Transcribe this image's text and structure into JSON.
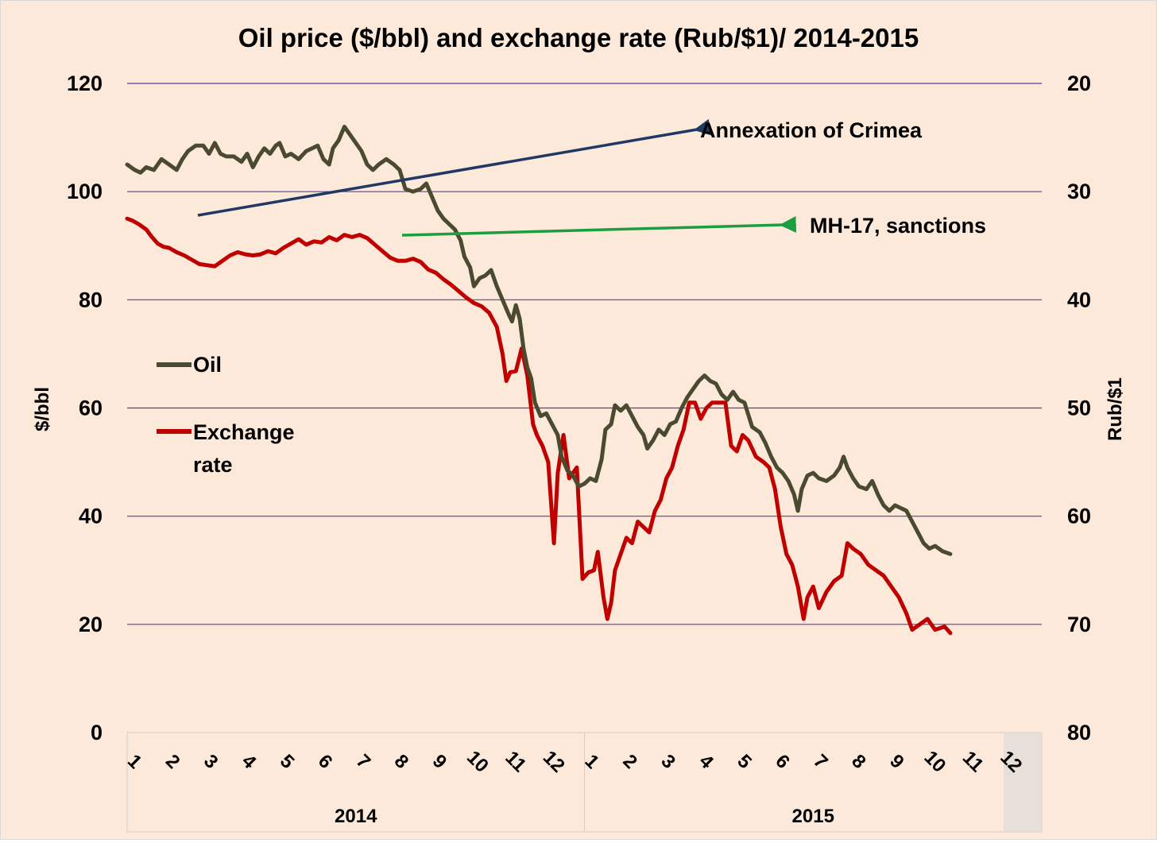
{
  "chart_data": {
    "type": "line",
    "title": "Oil price ($/bbl) and exchange rate (Rub/$1)/ 2014-2015",
    "ylabel_left": "$/bbl",
    "ylabel_right": "Rub/$1",
    "ylim_left": [
      0,
      120
    ],
    "yticks_left": [
      "0",
      "20",
      "40",
      "60",
      "80",
      "100",
      "120"
    ],
    "ylim_right": [
      80,
      20
    ],
    "yticks_right": [
      "80",
      "70",
      "60",
      "50",
      "40",
      "30",
      "20"
    ],
    "right_axis_inverted": true,
    "grid": true,
    "legend_position": "left-middle",
    "x_tick_labels": [
      "1",
      "2",
      "3",
      "4",
      "5",
      "6",
      "7",
      "8",
      "9",
      "10",
      "11",
      "12",
      "1",
      "2",
      "3",
      "4",
      "5",
      "6",
      "7",
      "8",
      "9",
      "10",
      "11",
      "12"
    ],
    "years": [
      "2014",
      "2015"
    ],
    "x_unit": "month index (1 = Jan 2014, 25 = end of Dec 2015)",
    "series": [
      {
        "name": "Oil",
        "axis": "left",
        "color": "#4a4a30",
        "points": [
          [
            1.0,
            105
          ],
          [
            1.2,
            104
          ],
          [
            1.35,
            103.5
          ],
          [
            1.5,
            104.5
          ],
          [
            1.7,
            104
          ],
          [
            1.9,
            106
          ],
          [
            2.1,
            105
          ],
          [
            2.3,
            104
          ],
          [
            2.45,
            106
          ],
          [
            2.6,
            107.5
          ],
          [
            2.8,
            108.5
          ],
          [
            3.0,
            108.5
          ],
          [
            3.15,
            107
          ],
          [
            3.3,
            109
          ],
          [
            3.45,
            107
          ],
          [
            3.6,
            106.5
          ],
          [
            3.8,
            106.5
          ],
          [
            4.0,
            105.5
          ],
          [
            4.15,
            107
          ],
          [
            4.3,
            104.5
          ],
          [
            4.45,
            106.5
          ],
          [
            4.6,
            108
          ],
          [
            4.75,
            107
          ],
          [
            4.9,
            108.5
          ],
          [
            5.0,
            109
          ],
          [
            5.15,
            106.5
          ],
          [
            5.3,
            107
          ],
          [
            5.5,
            106
          ],
          [
            5.7,
            107.5
          ],
          [
            5.85,
            108
          ],
          [
            6.0,
            108.5
          ],
          [
            6.15,
            106
          ],
          [
            6.3,
            105
          ],
          [
            6.4,
            108
          ],
          [
            6.55,
            109.5
          ],
          [
            6.7,
            112
          ],
          [
            6.85,
            110.5
          ],
          [
            7.0,
            109
          ],
          [
            7.15,
            107.5
          ],
          [
            7.3,
            105
          ],
          [
            7.45,
            104
          ],
          [
            7.6,
            105
          ],
          [
            7.8,
            106
          ],
          [
            8.0,
            105
          ],
          [
            8.15,
            104
          ],
          [
            8.3,
            100.5
          ],
          [
            8.5,
            100
          ],
          [
            8.7,
            100.5
          ],
          [
            8.85,
            101.5
          ],
          [
            9.0,
            99
          ],
          [
            9.15,
            96.5
          ],
          [
            9.3,
            95
          ],
          [
            9.45,
            94
          ],
          [
            9.6,
            93
          ],
          [
            9.75,
            91
          ],
          [
            9.85,
            88
          ],
          [
            10.0,
            86
          ],
          [
            10.1,
            82.5
          ],
          [
            10.25,
            84
          ],
          [
            10.4,
            84.5
          ],
          [
            10.55,
            85.5
          ],
          [
            10.7,
            82.5
          ],
          [
            10.85,
            80
          ],
          [
            11.0,
            77.5
          ],
          [
            11.1,
            76
          ],
          [
            11.2,
            79
          ],
          [
            11.3,
            76.5
          ],
          [
            11.4,
            71
          ],
          [
            11.5,
            67.5
          ],
          [
            11.6,
            65.5
          ],
          [
            11.7,
            61
          ],
          [
            11.85,
            58.5
          ],
          [
            12.0,
            59
          ],
          [
            12.15,
            57
          ],
          [
            12.3,
            55
          ],
          [
            12.4,
            51
          ],
          [
            12.55,
            48.5
          ],
          [
            12.7,
            47.5
          ],
          [
            12.85,
            45.5
          ],
          [
            13.0,
            46
          ],
          [
            13.15,
            47
          ],
          [
            13.3,
            46.5
          ],
          [
            13.45,
            50.5
          ],
          [
            13.55,
            56
          ],
          [
            13.7,
            57
          ],
          [
            13.8,
            60.5
          ],
          [
            13.95,
            59.5
          ],
          [
            14.1,
            60.5
          ],
          [
            14.25,
            58.5
          ],
          [
            14.4,
            56.5
          ],
          [
            14.55,
            55
          ],
          [
            14.65,
            52.5
          ],
          [
            14.8,
            54
          ],
          [
            14.95,
            56
          ],
          [
            15.1,
            55
          ],
          [
            15.25,
            57
          ],
          [
            15.4,
            57.5
          ],
          [
            15.55,
            60
          ],
          [
            15.7,
            62
          ],
          [
            15.85,
            63.5
          ],
          [
            16.0,
            65
          ],
          [
            16.15,
            66
          ],
          [
            16.3,
            65
          ],
          [
            16.45,
            64.5
          ],
          [
            16.6,
            62.5
          ],
          [
            16.75,
            61.5
          ],
          [
            16.9,
            63
          ],
          [
            17.05,
            61.5
          ],
          [
            17.2,
            61
          ],
          [
            17.4,
            56.5
          ],
          [
            17.6,
            55.5
          ],
          [
            17.75,
            53.5
          ],
          [
            17.9,
            51
          ],
          [
            18.05,
            49
          ],
          [
            18.2,
            48
          ],
          [
            18.35,
            46.5
          ],
          [
            18.5,
            44
          ],
          [
            18.6,
            41
          ],
          [
            18.7,
            45
          ],
          [
            18.85,
            47.5
          ],
          [
            19.0,
            48
          ],
          [
            19.15,
            47
          ],
          [
            19.35,
            46.5
          ],
          [
            19.55,
            47.5
          ],
          [
            19.7,
            49
          ],
          [
            19.8,
            51
          ],
          [
            19.9,
            49
          ],
          [
            20.05,
            47
          ],
          [
            20.2,
            45.5
          ],
          [
            20.4,
            45
          ],
          [
            20.55,
            46.5
          ],
          [
            20.7,
            44
          ],
          [
            20.85,
            42
          ],
          [
            21.0,
            41
          ],
          [
            21.15,
            42
          ],
          [
            21.3,
            41.5
          ],
          [
            21.45,
            41
          ],
          [
            21.6,
            39
          ],
          [
            21.75,
            37
          ],
          [
            21.9,
            35
          ],
          [
            22.05,
            34
          ],
          [
            22.2,
            34.5
          ],
          [
            22.4,
            33.5
          ],
          [
            22.6,
            33
          ]
        ]
      },
      {
        "name": "Exchange rate",
        "axis": "right",
        "color": "#c00000",
        "points": [
          [
            1.0,
            32.5
          ],
          [
            1.15,
            32.7
          ],
          [
            1.3,
            33.0
          ],
          [
            1.5,
            33.5
          ],
          [
            1.65,
            34.2
          ],
          [
            1.8,
            34.8
          ],
          [
            1.95,
            35.1
          ],
          [
            2.1,
            35.2
          ],
          [
            2.3,
            35.6
          ],
          [
            2.5,
            35.9
          ],
          [
            2.7,
            36.3
          ],
          [
            2.9,
            36.7
          ],
          [
            3.1,
            36.8
          ],
          [
            3.3,
            36.9
          ],
          [
            3.5,
            36.4
          ],
          [
            3.7,
            35.9
          ],
          [
            3.9,
            35.6
          ],
          [
            4.1,
            35.8
          ],
          [
            4.3,
            35.9
          ],
          [
            4.5,
            35.8
          ],
          [
            4.7,
            35.5
          ],
          [
            4.9,
            35.7
          ],
          [
            5.1,
            35.2
          ],
          [
            5.3,
            34.8
          ],
          [
            5.5,
            34.4
          ],
          [
            5.7,
            34.9
          ],
          [
            5.9,
            34.6
          ],
          [
            6.1,
            34.7
          ],
          [
            6.3,
            34.2
          ],
          [
            6.5,
            34.5
          ],
          [
            6.7,
            34.0
          ],
          [
            6.9,
            34.2
          ],
          [
            7.1,
            34.0
          ],
          [
            7.3,
            34.3
          ],
          [
            7.5,
            34.9
          ],
          [
            7.7,
            35.5
          ],
          [
            7.9,
            36.1
          ],
          [
            8.1,
            36.4
          ],
          [
            8.3,
            36.4
          ],
          [
            8.5,
            36.2
          ],
          [
            8.7,
            36.5
          ],
          [
            8.9,
            37.2
          ],
          [
            9.1,
            37.5
          ],
          [
            9.3,
            38.1
          ],
          [
            9.5,
            38.6
          ],
          [
            9.7,
            39.2
          ],
          [
            9.9,
            39.8
          ],
          [
            10.1,
            40.3
          ],
          [
            10.3,
            40.6
          ],
          [
            10.5,
            41.2
          ],
          [
            10.7,
            42.5
          ],
          [
            10.85,
            45.0
          ],
          [
            10.95,
            47.5
          ],
          [
            11.05,
            46.7
          ],
          [
            11.2,
            46.6
          ],
          [
            11.35,
            44.5
          ],
          [
            11.5,
            47.0
          ],
          [
            11.65,
            51.5
          ],
          [
            11.75,
            52.5
          ],
          [
            11.9,
            53.5
          ],
          [
            12.05,
            55.0
          ],
          [
            12.2,
            62.5
          ],
          [
            12.3,
            56.0
          ],
          [
            12.45,
            52.5
          ],
          [
            12.6,
            56.5
          ],
          [
            12.8,
            55.5
          ],
          [
            12.95,
            65.8
          ],
          [
            13.1,
            65.2
          ],
          [
            13.25,
            65.0
          ],
          [
            13.35,
            63.3
          ],
          [
            13.5,
            67.5
          ],
          [
            13.6,
            69.5
          ],
          [
            13.7,
            68.0
          ],
          [
            13.8,
            65.0
          ],
          [
            13.95,
            63.5
          ],
          [
            14.1,
            62.0
          ],
          [
            14.25,
            62.5
          ],
          [
            14.4,
            60.5
          ],
          [
            14.55,
            61.0
          ],
          [
            14.7,
            61.5
          ],
          [
            14.85,
            59.5
          ],
          [
            15.0,
            58.5
          ],
          [
            15.15,
            56.5
          ],
          [
            15.3,
            55.5
          ],
          [
            15.45,
            53.5
          ],
          [
            15.6,
            52.0
          ],
          [
            15.75,
            49.5
          ],
          [
            15.9,
            49.5
          ],
          [
            16.05,
            51.0
          ],
          [
            16.2,
            50.0
          ],
          [
            16.35,
            49.5
          ],
          [
            16.55,
            49.5
          ],
          [
            16.7,
            49.5
          ],
          [
            16.85,
            53.5
          ],
          [
            17.0,
            54.0
          ],
          [
            17.15,
            52.5
          ],
          [
            17.3,
            53.0
          ],
          [
            17.5,
            54.5
          ],
          [
            17.7,
            55.0
          ],
          [
            17.85,
            55.5
          ],
          [
            18.0,
            57.5
          ],
          [
            18.15,
            61.0
          ],
          [
            18.3,
            63.5
          ],
          [
            18.45,
            64.5
          ],
          [
            18.6,
            66.5
          ],
          [
            18.75,
            69.5
          ],
          [
            18.85,
            67.5
          ],
          [
            19.0,
            66.5
          ],
          [
            19.15,
            68.5
          ],
          [
            19.35,
            67.0
          ],
          [
            19.55,
            66.0
          ],
          [
            19.75,
            65.5
          ],
          [
            19.9,
            62.5
          ],
          [
            20.05,
            63.0
          ],
          [
            20.25,
            63.5
          ],
          [
            20.45,
            64.5
          ],
          [
            20.65,
            65.0
          ],
          [
            20.85,
            65.5
          ],
          [
            21.05,
            66.5
          ],
          [
            21.25,
            67.5
          ],
          [
            21.45,
            69.0
          ],
          [
            21.6,
            70.5
          ],
          [
            21.8,
            70.0
          ],
          [
            22.0,
            69.5
          ],
          [
            22.2,
            70.5
          ],
          [
            22.45,
            70.2
          ],
          [
            22.6,
            70.8
          ]
        ]
      }
    ],
    "annotations": [
      {
        "text": "Annexation of Crimea",
        "arrow_color": "#1f3864",
        "points_to_month": 2.7
      },
      {
        "text": "MH-17, sanctions",
        "arrow_color": "#1a9e3f",
        "points_to_month": 8.0
      }
    ]
  }
}
